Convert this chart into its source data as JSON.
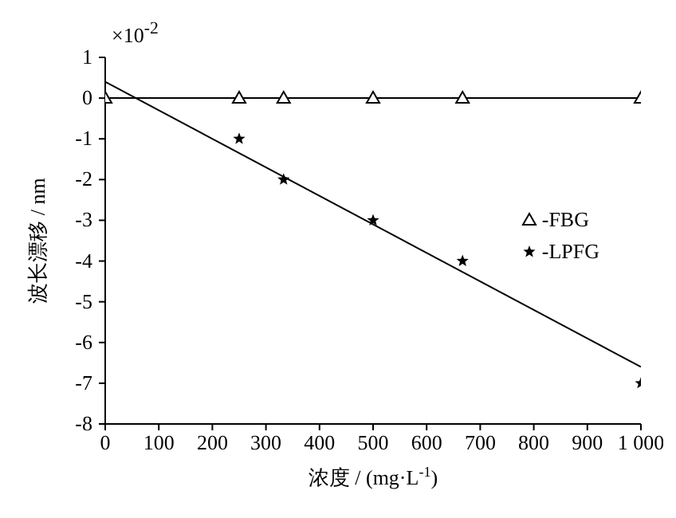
{
  "chart_data": {
    "type": "scatter",
    "xlabel": "浓度 / (mg·L$^{-1}$)",
    "ylabel": "波长漂移 / nm",
    "annotations": [
      "×10$^{-2}$"
    ],
    "x": [
      0,
      250,
      333,
      500,
      667,
      1000
    ],
    "series": [
      {
        "name": "-FBG",
        "type": "line",
        "marker": "triangle",
        "color": "#000000",
        "values": [
          0,
          0,
          0,
          0,
          0,
          0
        ]
      },
      {
        "name": "-LPFG",
        "type": "scatter",
        "marker": "star",
        "color": "#000000",
        "values": [
          null,
          -1,
          -2,
          -3,
          -4,
          -7
        ]
      },
      {
        "type": "line",
        "marker": "none",
        "color": "#000000",
        "x": [
          0,
          1000
        ],
        "values": [
          0.4,
          -6.6
        ]
      }
    ],
    "xlim": [
      0,
      1000
    ],
    "xticks": [
      0,
      100,
      200,
      300,
      400,
      500,
      600,
      700,
      800,
      900,
      {
        "value": 1000,
        "label": "1 000"
      }
    ],
    "ylim": [
      -8,
      1
    ],
    "yticks": [
      -8,
      -7,
      -6,
      -5,
      -4,
      -3,
      -2,
      -1,
      0,
      1
    ],
    "grid": false,
    "legend": "right"
  }
}
